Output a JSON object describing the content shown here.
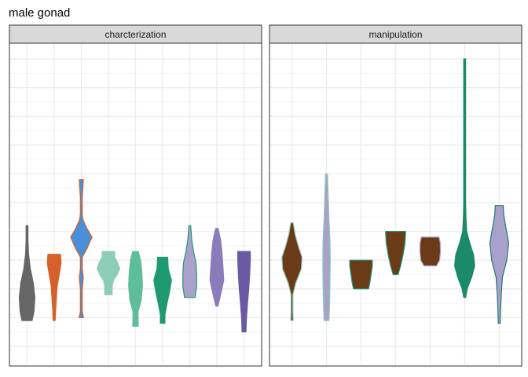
{
  "chart_data": {
    "type": "violin",
    "title": "male gonad",
    "xlabel": "",
    "ylabel": "",
    "grid": true,
    "y_range": [
      0,
      1
    ],
    "panels": [
      {
        "label": "charcterization",
        "violins": [
          {
            "fill": "#666666",
            "stroke": "#666666",
            "ymin": 0.09,
            "ymax": 0.42,
            "profile": [
              [
                0.09,
                0.4
              ],
              [
                0.12,
                0.55
              ],
              [
                0.17,
                0.62
              ],
              [
                0.22,
                0.5
              ],
              [
                0.27,
                0.26
              ],
              [
                0.32,
                0.12
              ],
              [
                0.37,
                0.06
              ],
              [
                0.42,
                0.03
              ]
            ]
          },
          {
            "fill": "#D4612A",
            "stroke": "#D4612A",
            "ymin": 0.09,
            "ymax": 0.32,
            "profile": [
              [
                0.09,
                0.08
              ],
              [
                0.13,
                0.12
              ],
              [
                0.17,
                0.18
              ],
              [
                0.21,
                0.24
              ],
              [
                0.25,
                0.4
              ],
              [
                0.29,
                0.55
              ],
              [
                0.32,
                0.5
              ]
            ]
          },
          {
            "fill": "#4A90D9",
            "stroke": "#D4612A",
            "ymin": 0.1,
            "ymax": 0.58,
            "profile": [
              [
                0.1,
                0.18
              ],
              [
                0.12,
                0.02
              ],
              [
                0.2,
                0.02
              ],
              [
                0.24,
                0.16
              ],
              [
                0.27,
                0.02
              ],
              [
                0.31,
                0.02
              ],
              [
                0.34,
                0.45
              ],
              [
                0.38,
                0.85
              ],
              [
                0.41,
                0.45
              ],
              [
                0.44,
                0.14
              ],
              [
                0.46,
                0.02
              ],
              [
                0.52,
                0.02
              ],
              [
                0.56,
                0.14
              ],
              [
                0.58,
                0.16
              ]
            ]
          },
          {
            "fill": "#8DCDB8",
            "stroke": "#8DCDB8",
            "ymin": 0.18,
            "ymax": 0.33,
            "profile": [
              [
                0.18,
                0.3
              ],
              [
                0.21,
                0.3
              ],
              [
                0.23,
                0.4
              ],
              [
                0.25,
                0.7
              ],
              [
                0.27,
                0.9
              ],
              [
                0.29,
                0.75
              ],
              [
                0.31,
                0.5
              ],
              [
                0.33,
                0.5
              ]
            ]
          },
          {
            "fill": "#5FBE9A",
            "stroke": "#5FBE9A",
            "ymin": 0.07,
            "ymax": 0.33,
            "profile": [
              [
                0.07,
                0.22
              ],
              [
                0.12,
                0.2
              ],
              [
                0.16,
                0.45
              ],
              [
                0.21,
                0.55
              ],
              [
                0.26,
                0.5
              ],
              [
                0.3,
                0.4
              ],
              [
                0.33,
                0.22
              ]
            ]
          },
          {
            "fill": "#1F9A70",
            "stroke": "#1F9A70",
            "ymin": 0.08,
            "ymax": 0.31,
            "profile": [
              [
                0.08,
                0.18
              ],
              [
                0.11,
                0.18
              ],
              [
                0.15,
                0.35
              ],
              [
                0.19,
                0.55
              ],
              [
                0.23,
                0.7
              ],
              [
                0.27,
                0.45
              ],
              [
                0.31,
                0.4
              ]
            ]
          },
          {
            "fill": "#A9A0CC",
            "stroke": "#1F9A70",
            "ymin": 0.17,
            "ymax": 0.42,
            "profile": [
              [
                0.17,
                0.42
              ],
              [
                0.21,
                0.55
              ],
              [
                0.25,
                0.55
              ],
              [
                0.29,
                0.5
              ],
              [
                0.33,
                0.3
              ],
              [
                0.37,
                0.16
              ],
              [
                0.42,
                0.06
              ]
            ]
          },
          {
            "fill": "#8A7CB8",
            "stroke": "#8A7CB8",
            "ymin": 0.14,
            "ymax": 0.41,
            "profile": [
              [
                0.14,
                0.08
              ],
              [
                0.18,
                0.3
              ],
              [
                0.23,
                0.55
              ],
              [
                0.28,
                0.48
              ],
              [
                0.33,
                0.4
              ],
              [
                0.37,
                0.3
              ],
              [
                0.41,
                0.1
              ]
            ]
          },
          {
            "fill": "#6A5AA4",
            "stroke": "#6A5AA4",
            "ymin": 0.05,
            "ymax": 0.33,
            "profile": [
              [
                0.05,
                0.15
              ],
              [
                0.1,
                0.2
              ],
              [
                0.15,
                0.28
              ],
              [
                0.2,
                0.38
              ],
              [
                0.25,
                0.45
              ],
              [
                0.3,
                0.5
              ],
              [
                0.33,
                0.5
              ]
            ]
          }
        ]
      },
      {
        "label": "manipulation",
        "violins": [
          {
            "fill": "#6B3A17",
            "stroke": "#8DCDB8",
            "ymin": 0.09,
            "ymax": 0.43,
            "profile": [
              [
                0.09,
                0.1
              ],
              [
                0.12,
                0.02
              ],
              [
                0.18,
                0.02
              ],
              [
                0.22,
                0.3
              ],
              [
                0.27,
                0.75
              ],
              [
                0.31,
                0.8
              ],
              [
                0.35,
                0.5
              ],
              [
                0.39,
                0.25
              ],
              [
                0.43,
                0.1
              ]
            ]
          },
          {
            "fill": "#A9A0CC",
            "stroke": "#8DCDB8",
            "ymin": 0.09,
            "ymax": 0.6,
            "profile": [
              [
                0.09,
                0.2
              ],
              [
                0.15,
                0.25
              ],
              [
                0.22,
                0.28
              ],
              [
                0.3,
                0.3
              ],
              [
                0.37,
                0.28
              ],
              [
                0.44,
                0.2
              ],
              [
                0.52,
                0.14
              ],
              [
                0.6,
                0.08
              ]
            ]
          },
          {
            "fill": "#6B3A17",
            "stroke": "#1F9A70",
            "ymin": 0.2,
            "ymax": 0.3,
            "profile": [
              [
                0.2,
                0.6
              ],
              [
                0.22,
                0.7
              ],
              [
                0.25,
                0.8
              ],
              [
                0.28,
                0.9
              ],
              [
                0.3,
                0.9
              ]
            ]
          },
          {
            "fill": "#6B3A17",
            "stroke": "#1F9A70",
            "ymin": 0.25,
            "ymax": 0.4,
            "profile": [
              [
                0.25,
                0.2
              ],
              [
                0.28,
                0.4
              ],
              [
                0.32,
                0.6
              ],
              [
                0.36,
                0.75
              ],
              [
                0.4,
                0.8
              ]
            ]
          },
          {
            "fill": "#6B3A17",
            "stroke": "#A9A0CC",
            "ymin": 0.28,
            "ymax": 0.38,
            "profile": [
              [
                0.28,
                0.5
              ],
              [
                0.3,
                0.75
              ],
              [
                0.33,
                0.82
              ],
              [
                0.36,
                0.8
              ],
              [
                0.38,
                0.7
              ]
            ]
          },
          {
            "fill": "#1A8A6A",
            "stroke": "#1A8A6A",
            "ymin": 0.17,
            "ymax": 1.0,
            "profile": [
              [
                0.17,
                0.06
              ],
              [
                0.2,
                0.2
              ],
              [
                0.24,
                0.55
              ],
              [
                0.28,
                0.8
              ],
              [
                0.32,
                0.7
              ],
              [
                0.36,
                0.4
              ],
              [
                0.4,
                0.16
              ],
              [
                0.45,
                0.1
              ],
              [
                0.5,
                0.02
              ],
              [
                0.6,
                0.02
              ],
              [
                0.75,
                0.02
              ],
              [
                0.9,
                0.02
              ],
              [
                0.96,
                0.05
              ],
              [
                1.0,
                0.06
              ]
            ]
          },
          {
            "fill": "#A9A0CC",
            "stroke": "#1F7A70",
            "ymin": 0.08,
            "ymax": 0.49,
            "profile": [
              [
                0.08,
                0.06
              ],
              [
                0.12,
                0.1
              ],
              [
                0.18,
                0.16
              ],
              [
                0.24,
                0.25
              ],
              [
                0.3,
                0.6
              ],
              [
                0.36,
                0.75
              ],
              [
                0.42,
                0.5
              ],
              [
                0.46,
                0.35
              ],
              [
                0.49,
                0.32
              ]
            ]
          }
        ]
      }
    ]
  }
}
